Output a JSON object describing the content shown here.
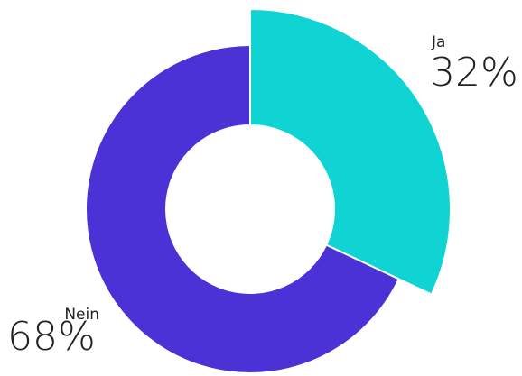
{
  "chart_data": {
    "type": "donut",
    "categories": [
      "Ja",
      "Nein"
    ],
    "values": [
      32,
      68
    ],
    "value_labels": [
      "32%",
      "68%"
    ],
    "colors": [
      "#10d3d3",
      "#4b32d6"
    ]
  }
}
